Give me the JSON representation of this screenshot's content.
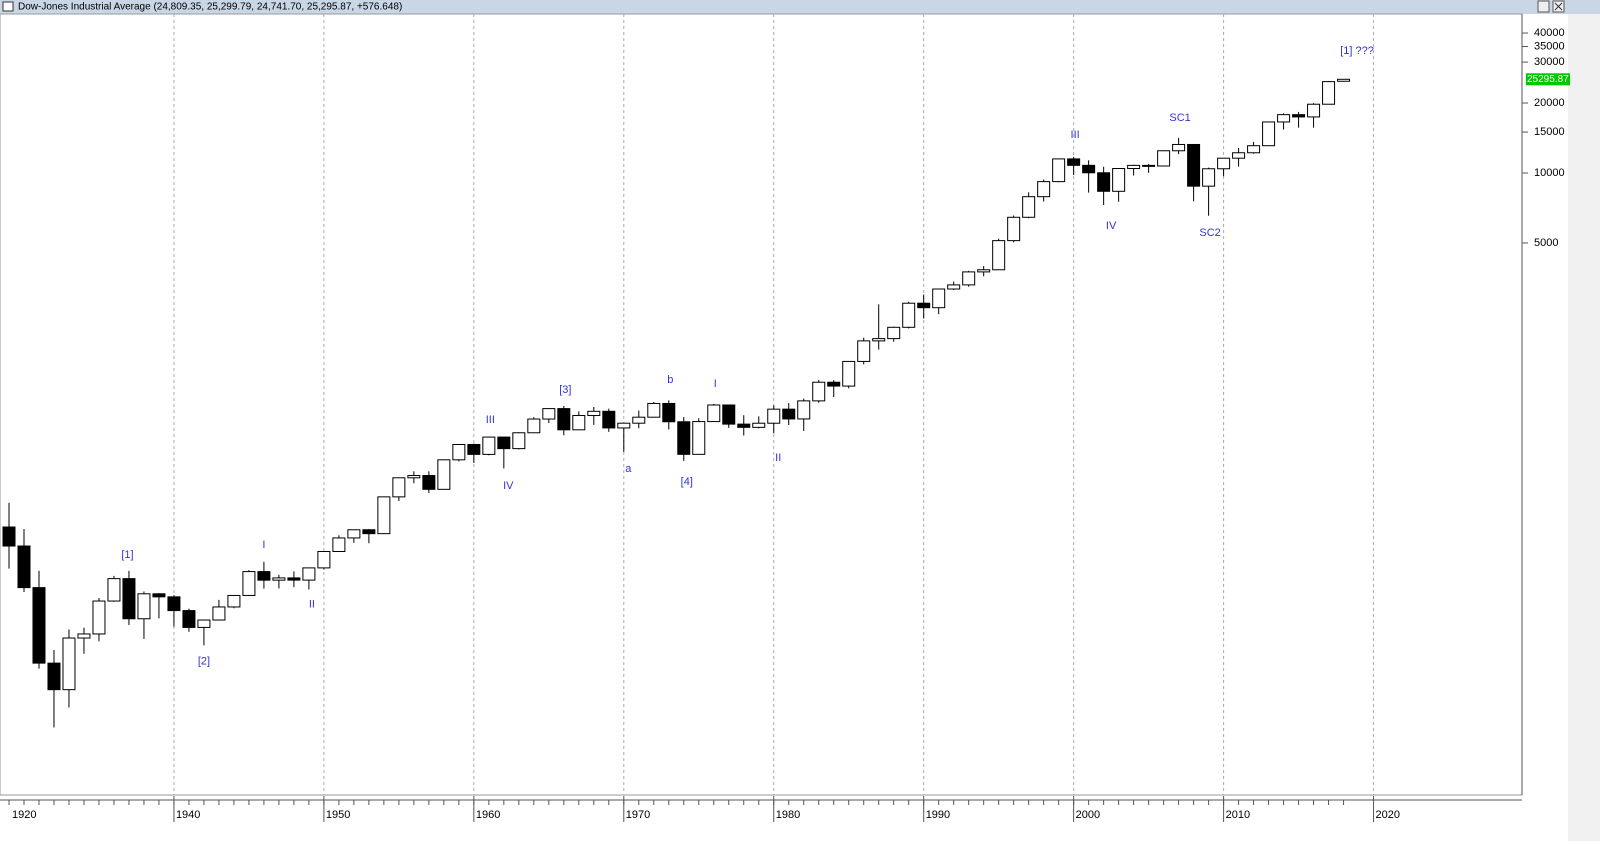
{
  "chart_data": {
    "type": "candlestick",
    "title": "Dow-Jones Industrial Average (24,809.35, 25,299.79, 24,741.70, 25,295.87, +576.648)",
    "log_scale": true,
    "grid": true,
    "up_color": "#ffffff",
    "down_color": "#000000",
    "annotation_color": "#3333dd",
    "xlim": [
      1928.4,
      2029.9
    ],
    "ylim": [
      21.1,
      48300
    ],
    "xticks": [
      1920,
      1940,
      1950,
      1960,
      1970,
      1980,
      1990,
      2000,
      2010,
      2020
    ],
    "yticks": [
      5000,
      10000,
      15000,
      20000,
      30000,
      35000,
      40000
    ],
    "last_price": 25295.87,
    "x": [
      1929,
      1930,
      1931,
      1932,
      1933,
      1934,
      1935,
      1936,
      1937,
      1938,
      1939,
      1940,
      1941,
      1942,
      1943,
      1944,
      1945,
      1946,
      1947,
      1948,
      1949,
      1950,
      1951,
      1952,
      1953,
      1954,
      1955,
      1956,
      1957,
      1958,
      1959,
      1960,
      1961,
      1962,
      1963,
      1964,
      1965,
      1966,
      1967,
      1968,
      1969,
      1970,
      1971,
      1972,
      1973,
      1974,
      1975,
      1976,
      1977,
      1978,
      1979,
      1980,
      1981,
      1982,
      1983,
      1984,
      1985,
      1986,
      1987,
      1988,
      1989,
      1990,
      1991,
      1992,
      1993,
      1994,
      1995,
      1996,
      1997,
      1998,
      1999,
      2000,
      2001,
      2002,
      2003,
      2004,
      2005,
      2006,
      2007,
      2008,
      2009,
      2010,
      2011,
      2012,
      2013,
      2014,
      2015,
      2016,
      2017,
      2018
    ],
    "open": [
      300,
      248.5,
      164.6,
      77.9,
      59.9,
      99.9,
      104.0,
      144.1,
      179.9,
      120.9,
      154.8,
      150.2,
      131.1,
      110.96,
      119.4,
      135.9,
      152.3,
      192.9,
      177.2,
      181.2,
      177.3,
      200.1,
      235.4,
      269.2,
      291.9,
      280.9,
      404.4,
      488.4,
      499.5,
      435.7,
      583.7,
      679.4,
      615.9,
      731.1,
      652.1,
      762.95,
      874.1,
      969.3,
      785.7,
      905.1,
      943.75,
      800.4,
      838.9,
      890.2,
      1020.0,
      850.9,
      616.2,
      852.4,
      1004.65,
      831.2,
      805.0,
      838.7,
      963.99,
      875.0,
      1046.5,
      1258.6,
      1211.6,
      1546.7,
      1895.95,
      1938.8,
      2168.6,
      2753.2,
      2633.7,
      3168.8,
      3301.1,
      3754.1,
      3834.4,
      5117.1,
      6448.3,
      7908.25,
      9181.4,
      11497.1,
      10787.0,
      10021.5,
      8341.6,
      10453.9,
      10783.0,
      10717.5,
      12463.15,
      13264.8,
      8776.4,
      10428.05,
      11577.5,
      12217.6,
      13104.1,
      16576.7,
      17823.1,
      17425.0,
      19762.6,
      24809.35
    ],
    "high": [
      381.2,
      294.1,
      194.4,
      88.8,
      108.7,
      110.7,
      148.4,
      184.9,
      194.4,
      158.4,
      155.9,
      152.8,
      133.6,
      119.7,
      145.8,
      152.5,
      195.8,
      212.5,
      186.9,
      193.2,
      200.5,
      235.5,
      276.4,
      292.0,
      293.8,
      404.4,
      488.4,
      521.0,
      520.8,
      583.7,
      679.4,
      685.5,
      734.9,
      726.0,
      767.2,
      891.7,
      969.3,
      995.2,
      943.1,
      985.2,
      968.9,
      842.0,
      950.8,
      1036.3,
      1051.7,
      891.7,
      881.8,
      1014.8,
      999.75,
      907.7,
      897.6,
      1000.2,
      1024.0,
      1070.6,
      1287.2,
      1286.6,
      1553.1,
      1955.6,
      2722.4,
      2183.5,
      2791.4,
      2999.75,
      3168.8,
      3413.2,
      3794.3,
      3978.4,
      5216.5,
      6560.9,
      8259.3,
      9374.3,
      11497.1,
      11723.0,
      11337.9,
      10635.25,
      10453.9,
      10854.5,
      10940.5,
      12510.6,
      14164.5,
      13058.2,
      10548.5,
      11585.4,
      12810.5,
      13610.15,
      16576.7,
      18053.7,
      18312.4,
      19974.6,
      24837.5,
      25299.79
    ],
    "low": [
      198.7,
      157.5,
      73.8,
      41.2,
      50.2,
      85.5,
      96.7,
      143.1,
      113.6,
      99.0,
      121.4,
      111.8,
      106.3,
      92.9,
      119.3,
      134.2,
      151.4,
      163.1,
      163.2,
      165.4,
      161.6,
      196.8,
      239.0,
      256.4,
      255.5,
      279.9,
      388.2,
      462.4,
      419.8,
      436.9,
      574.5,
      566.0,
      610.3,
      535.8,
      646.8,
      766.1,
      840.6,
      744.3,
      786.4,
      825.1,
      769.9,
      631.2,
      798.0,
      889.15,
      788.3,
      577.6,
      632.0,
      858.7,
      800.85,
      742.1,
      796.7,
      759.1,
      824.0,
      776.9,
      1027.0,
      1086.6,
      1185.0,
      1502.3,
      1738.7,
      1879.1,
      2144.6,
      2365.1,
      2470.3,
      3136.6,
      3242.0,
      3593.35,
      3832.1,
      5032.9,
      6391.7,
      7539.1,
      9120.7,
      9796.0,
      8235.8,
      7286.3,
      7524.1,
      9750.0,
      10012.4,
      10667.4,
      12050.4,
      7552.3,
      6547.05,
      9686.5,
      10655.3,
      12101.5,
      13328.85,
      15372.8,
      15666.4,
      15660.2,
      19732.4,
      24741.7
    ],
    "close": [
      248.5,
      164.6,
      77.9,
      59.9,
      99.9,
      104.0,
      144.1,
      179.9,
      120.9,
      154.8,
      150.2,
      131.1,
      110.96,
      119.4,
      135.9,
      152.3,
      192.9,
      177.2,
      181.2,
      177.3,
      200.1,
      235.4,
      269.2,
      291.9,
      280.9,
      404.4,
      488.4,
      499.5,
      435.7,
      583.7,
      679.4,
      615.9,
      731.1,
      652.1,
      762.95,
      874.1,
      969.3,
      785.7,
      905.1,
      943.75,
      800.4,
      838.9,
      890.2,
      1020.0,
      850.9,
      616.2,
      852.4,
      1004.65,
      831.2,
      805.0,
      838.7,
      963.99,
      875.0,
      1046.5,
      1258.6,
      1211.6,
      1546.7,
      1895.95,
      1938.8,
      2168.6,
      2753.2,
      2633.7,
      3168.8,
      3301.1,
      3754.1,
      3834.4,
      5117.1,
      6448.3,
      7908.25,
      9181.4,
      11497.1,
      10787.0,
      10021.5,
      8341.6,
      10453.9,
      10783.0,
      10717.5,
      12463.15,
      13264.8,
      8776.4,
      10428.05,
      11577.5,
      12217.6,
      13104.1,
      16576.7,
      17823.1,
      17425.0,
      19762.6,
      24719.2,
      25295.87
    ],
    "annotations": [
      {
        "text": "[1]",
        "x": 1936.9,
        "y": 227
      },
      {
        "text": "[2]",
        "x": 1942,
        "y": 79
      },
      {
        "text": "I",
        "x": 1946,
        "y": 251
      },
      {
        "text": "II",
        "x": 1949.2,
        "y": 139
      },
      {
        "text": "III",
        "x": 1961.1,
        "y": 867
      },
      {
        "text": "IV",
        "x": 1962.3,
        "y": 451
      },
      {
        "text": "[3]",
        "x": 1966.1,
        "y": 1167
      },
      {
        "text": "a",
        "x": 1970.3,
        "y": 533
      },
      {
        "text": "b",
        "x": 1973.1,
        "y": 1288
      },
      {
        "text": "[4]",
        "x": 1974.2,
        "y": 469
      },
      {
        "text": "I",
        "x": 1976.1,
        "y": 1237
      },
      {
        "text": "II",
        "x": 1980.3,
        "y": 594
      },
      {
        "text": "III",
        "x": 2000.1,
        "y": 14560
      },
      {
        "text": "IV",
        "x": 2002.5,
        "y": 5917
      },
      {
        "text": "SC1",
        "x": 2007.1,
        "y": 17240
      },
      {
        "text": "SC2",
        "x": 2009.1,
        "y": 5522
      },
      {
        "text": "[1] ???",
        "x": 2018.9,
        "y": 33480
      }
    ]
  }
}
